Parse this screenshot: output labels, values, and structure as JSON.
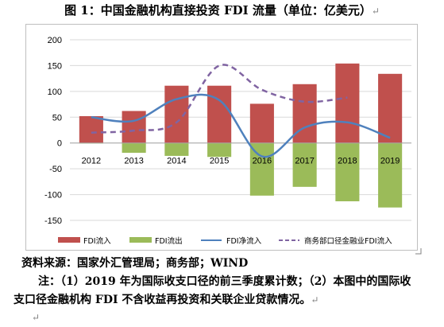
{
  "title": "图 1：中国金融机构直接投资 FDI 流量（单位：亿美元）",
  "paragraph_mark": "↵",
  "source": "资料来源：国家外汇管理局；商务部；WIND",
  "note_line1": "注：（1）2019 年为国际收支口径的前三季度累计数；（2）本图中的国际收",
  "note_line2": "支口径金融机构 FDI 不含收益再投资和关联企业贷款情况。",
  "colors": {
    "inflow": "#c0504d",
    "outflow": "#9bbb59",
    "net": "#4f81bd",
    "mofcom": "#8064a2"
  },
  "chart_data": {
    "type": "bar",
    "categories": [
      "2012",
      "2013",
      "2014",
      "2015",
      "2016",
      "2017",
      "2018",
      "2019"
    ],
    "ylim": [
      -150,
      200
    ],
    "yticks": [
      200,
      150,
      100,
      50,
      0,
      -50,
      -100,
      -150
    ],
    "grid": true,
    "legend_position": "bottom",
    "series": [
      {
        "name": "FDI流入",
        "kind": "bar",
        "values": [
          52,
          62,
          111,
          111,
          76,
          114,
          154,
          134
        ]
      },
      {
        "name": "FDI流出",
        "kind": "bar",
        "values": [
          -1,
          -19,
          -25,
          -27,
          -102,
          -85,
          -113,
          -125
        ]
      },
      {
        "name": "FDI净流入",
        "kind": "line",
        "values": [
          50,
          43,
          85,
          83,
          -26,
          30,
          40,
          10
        ]
      },
      {
        "name": "商务部口径金融业FDI流入",
        "kind": "dashed-line",
        "values": [
          20,
          24,
          40,
          150,
          103,
          80,
          88,
          null
        ]
      }
    ]
  }
}
